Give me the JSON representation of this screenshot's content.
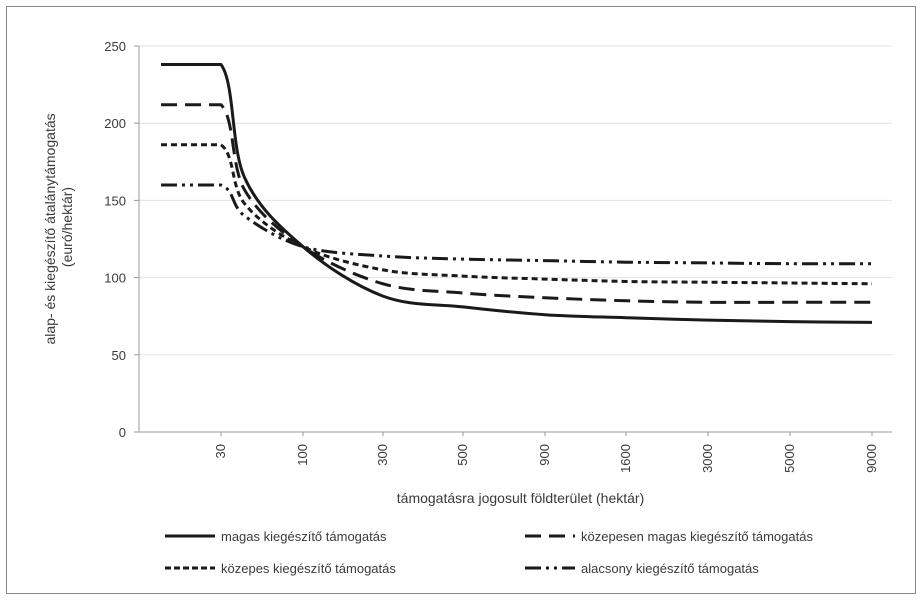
{
  "chart_data": {
    "type": "line",
    "title": "",
    "xlabel": "támogatásra jogosult földterület (hektár)",
    "ylabel_line1": "alap- és kiegészítő átalánytámogatás",
    "ylabel_line2": "(euró/hektár)",
    "x_scale": "categorical (nonlinear)",
    "x_ticks": [
      "30",
      "100",
      "300",
      "500",
      "900",
      "1600",
      "3000",
      "5000",
      "9000"
    ],
    "y_ticks": [
      "0",
      "50",
      "100",
      "150",
      "200",
      "250"
    ],
    "ylim": [
      0,
      250
    ],
    "grid": "horizontal",
    "legend_position": "bottom",
    "x": [
      1,
      30,
      50,
      100,
      300,
      500,
      900,
      1600,
      3000,
      5000,
      9000
    ],
    "series": [
      {
        "name": "magas kiegészítő támogatás",
        "style": "solid",
        "values": [
          238,
          238,
          165,
          120,
          88,
          81,
          76,
          74,
          72.5,
          71.5,
          71
        ]
      },
      {
        "name": "közepesen magas kiegészítő támogatás",
        "style": "long-dash",
        "values": [
          212,
          212,
          157,
          120,
          96,
          90,
          87,
          85,
          84,
          84,
          84
        ]
      },
      {
        "name": "közepes kiegészítő támogatás",
        "style": "short-dash",
        "values": [
          186,
          186,
          148,
          120,
          105,
          101,
          99,
          97.5,
          97,
          96.5,
          96
        ]
      },
      {
        "name": "alacsony kiegészítő támogatás",
        "style": "dash-dot-dot",
        "values": [
          160,
          160,
          140,
          120,
          114,
          112,
          111,
          110,
          109.5,
          109,
          109
        ]
      }
    ]
  }
}
